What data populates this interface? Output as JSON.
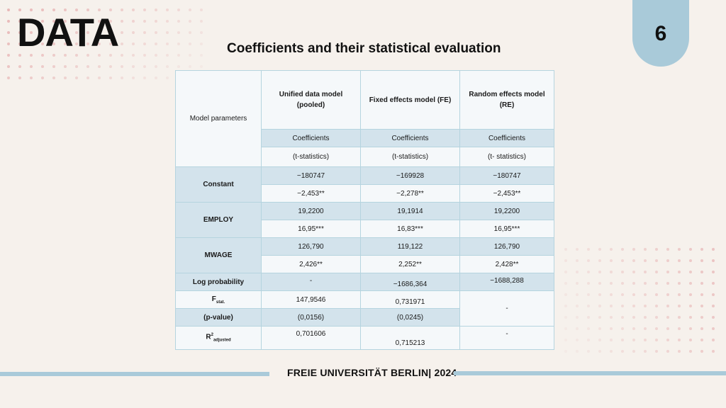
{
  "header": {
    "title": "DATA",
    "page_number": "6",
    "subtitle": "Coefficients and their statistical evaluation"
  },
  "table": {
    "row_header": "Model parameters",
    "models": [
      "Unified data model\n(pooled)",
      "Fixed effects model (FE)",
      "Random effects model\n(RE)"
    ],
    "coef_labels": [
      "Coefficients",
      "Coefficients",
      "Coefficients"
    ],
    "tstat_labels": [
      "(t-statistics)",
      "(t-statistics)",
      "(t- statistics)"
    ],
    "constant": {
      "label": "Constant",
      "coef": [
        "−180747",
        "−169928",
        "−180747"
      ],
      "tstat": [
        "−2,453**",
        "−2,278**",
        "−2,453**"
      ]
    },
    "employ": {
      "label": "EMPLOY",
      "coef": [
        "19,2200",
        "19,1914",
        "19,2200"
      ],
      "tstat": [
        "16,95***",
        "16,83***",
        "16,95***"
      ]
    },
    "mwage": {
      "label": "MWAGE",
      "coef": [
        "126,790",
        "119,122",
        "126,790"
      ],
      "tstat": [
        "2,426**",
        "2,252**",
        "2,428**"
      ]
    },
    "log_probability": {
      "label": "Log probability",
      "values": [
        "-",
        "−1686,364",
        "−1688,288"
      ]
    },
    "fstat": {
      "label_main": "F",
      "label_sub": "stat.",
      "values": [
        "147,9546",
        "0,731971",
        "-"
      ]
    },
    "pvalue": {
      "label": "(p-value)",
      "values": [
        "(0,0156)",
        "(0,0245)"
      ]
    },
    "r2": {
      "label_main": "R",
      "label_sup": "2",
      "label_sub": "adjusted",
      "values": [
        "0,701606",
        "0,715213",
        "-"
      ]
    }
  },
  "footer": {
    "text": "FREIE UNIVERSITÄT BERLIN| 2024"
  },
  "colors": {
    "accent": "#a9cad9",
    "dot": "#e8b8b8",
    "background": "#f6f1ec"
  }
}
